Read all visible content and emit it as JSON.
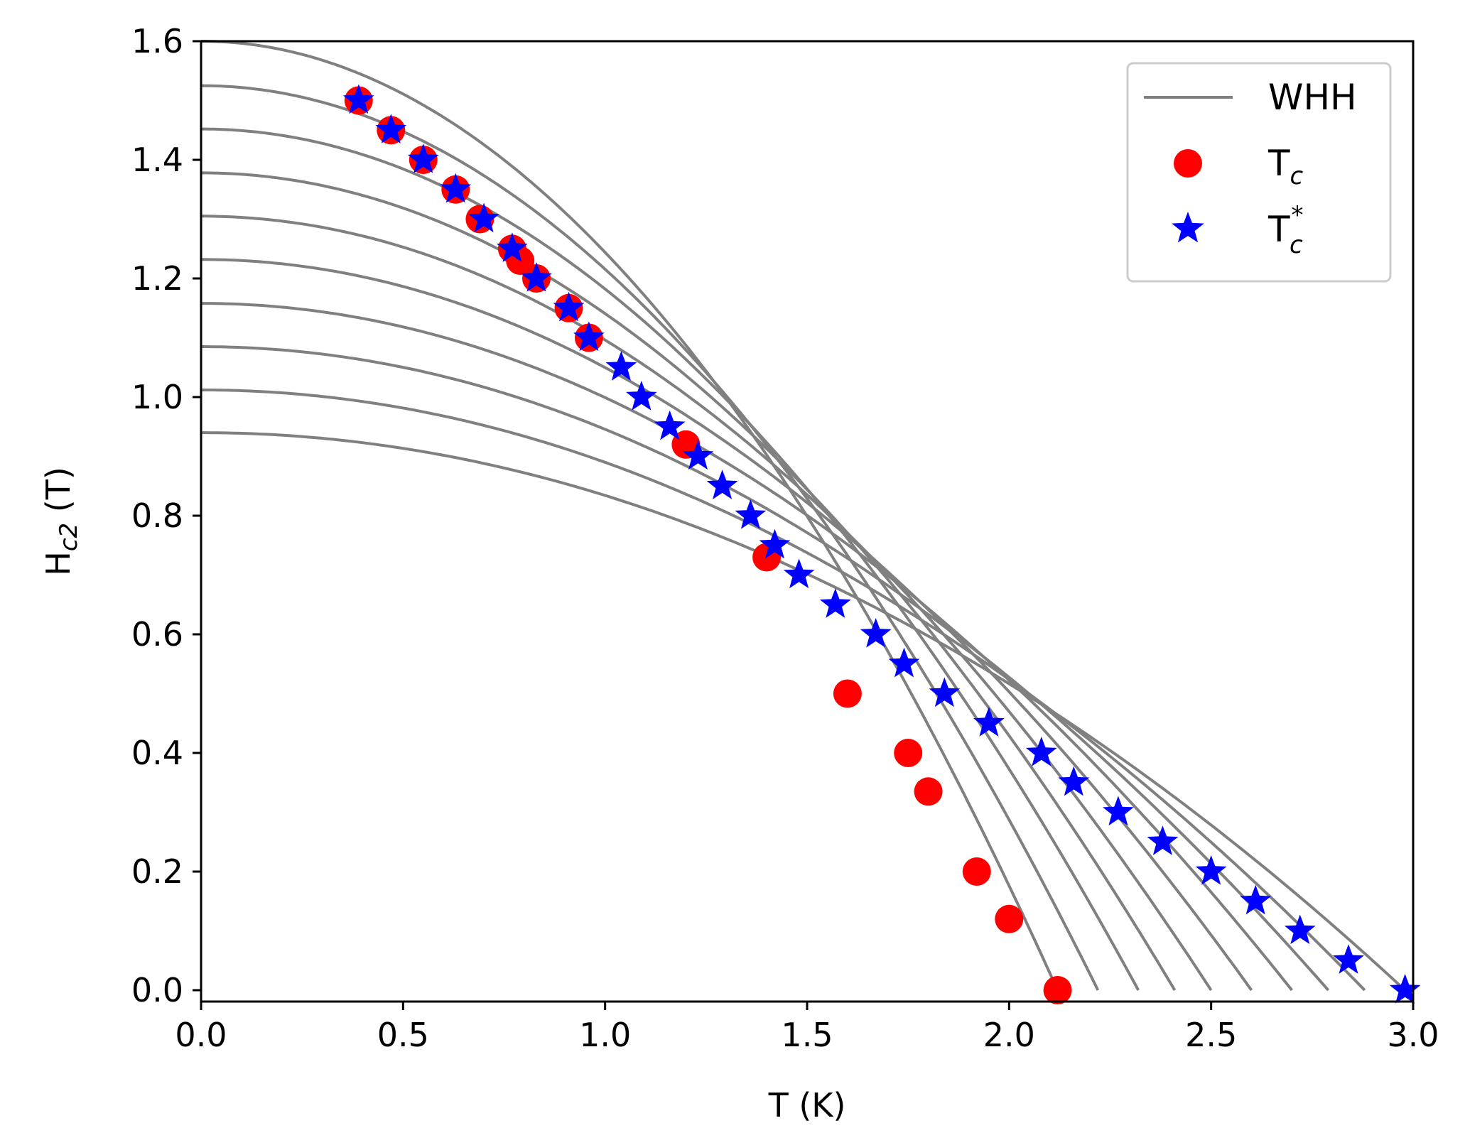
{
  "chart_data": {
    "type": "scatter",
    "title": "",
    "xlabel": "T (K)",
    "ylabel": {
      "main": "H",
      "sub": "c2",
      "suffix": " (T)"
    },
    "xlim": [
      0.0,
      3.0
    ],
    "ylim": [
      -0.02,
      1.6
    ],
    "grid": false,
    "legend_position": "top-right",
    "x_ticks": [
      0.0,
      0.5,
      1.0,
      1.5,
      2.0,
      2.5,
      3.0
    ],
    "x_tick_labels": [
      "0.0",
      "0.5",
      "1.0",
      "1.5",
      "2.0",
      "2.5",
      "3.0"
    ],
    "y_ticks": [
      0.0,
      0.2,
      0.4,
      0.6,
      0.8,
      1.0,
      1.2,
      1.4,
      1.6
    ],
    "y_tick_labels": [
      "0.0",
      "0.2",
      "0.4",
      "0.6",
      "0.8",
      "1.0",
      "1.2",
      "1.4",
      "1.6"
    ],
    "series": [
      {
        "name": "WHH",
        "kind": "line",
        "color": "#808080",
        "curves": [
          {
            "Tc": 2.12,
            "H0": 1.6
          },
          {
            "Tc": 2.22,
            "H0": 1.525
          },
          {
            "Tc": 2.32,
            "H0": 1.452
          },
          {
            "Tc": 2.41,
            "H0": 1.378
          },
          {
            "Tc": 2.5,
            "H0": 1.305
          },
          {
            "Tc": 2.6,
            "H0": 1.232
          },
          {
            "Tc": 2.7,
            "H0": 1.158
          },
          {
            "Tc": 2.79,
            "H0": 1.085
          },
          {
            "Tc": 2.88,
            "H0": 1.012
          },
          {
            "Tc": 2.98,
            "H0": 0.94
          }
        ]
      },
      {
        "name": "T",
        "legend_sub": "c",
        "legend_sup": "",
        "kind": "scatter",
        "marker": "circle",
        "color": "#ff0000",
        "points": [
          [
            0.39,
            1.5
          ],
          [
            0.47,
            1.45
          ],
          [
            0.55,
            1.4
          ],
          [
            0.63,
            1.35
          ],
          [
            0.69,
            1.3
          ],
          [
            0.77,
            1.25
          ],
          [
            0.79,
            1.23
          ],
          [
            0.83,
            1.2
          ],
          [
            0.91,
            1.15
          ],
          [
            0.96,
            1.1
          ],
          [
            1.2,
            0.92
          ],
          [
            1.4,
            0.73
          ],
          [
            1.6,
            0.5
          ],
          [
            1.75,
            0.4
          ],
          [
            1.8,
            0.335
          ],
          [
            1.92,
            0.2
          ],
          [
            2.0,
            0.12
          ],
          [
            2.12,
            0.0
          ]
        ]
      },
      {
        "name": "T",
        "legend_sub": "c",
        "legend_sup": "*",
        "kind": "scatter",
        "marker": "star",
        "color": "#0000ff",
        "points": [
          [
            0.39,
            1.5
          ],
          [
            0.47,
            1.45
          ],
          [
            0.55,
            1.4
          ],
          [
            0.63,
            1.35
          ],
          [
            0.7,
            1.3
          ],
          [
            0.77,
            1.25
          ],
          [
            0.83,
            1.2
          ],
          [
            0.91,
            1.15
          ],
          [
            0.96,
            1.1
          ],
          [
            1.04,
            1.05
          ],
          [
            1.09,
            1.0
          ],
          [
            1.16,
            0.95
          ],
          [
            1.23,
            0.9
          ],
          [
            1.29,
            0.85
          ],
          [
            1.36,
            0.8
          ],
          [
            1.42,
            0.75
          ],
          [
            1.48,
            0.7
          ],
          [
            1.57,
            0.65
          ],
          [
            1.67,
            0.6
          ],
          [
            1.74,
            0.55
          ],
          [
            1.84,
            0.5
          ],
          [
            1.95,
            0.45
          ],
          [
            2.08,
            0.4
          ],
          [
            2.16,
            0.35
          ],
          [
            2.27,
            0.3
          ],
          [
            2.38,
            0.25
          ],
          [
            2.5,
            0.2
          ],
          [
            2.61,
            0.15
          ],
          [
            2.72,
            0.1
          ],
          [
            2.84,
            0.05
          ],
          [
            2.98,
            0.0
          ]
        ]
      }
    ]
  }
}
